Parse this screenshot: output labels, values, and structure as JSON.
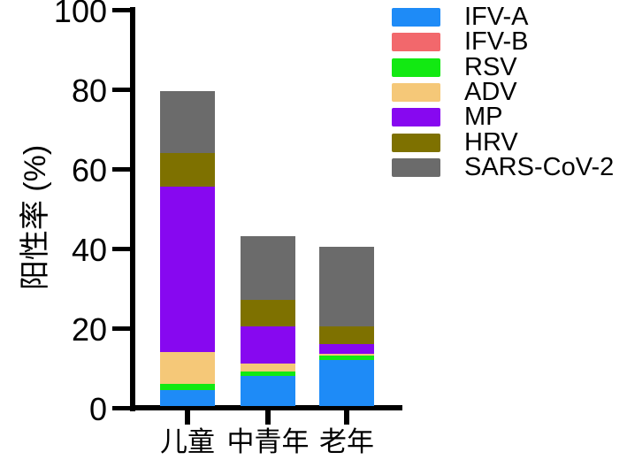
{
  "chart_data": {
    "type": "bar",
    "stacked": true,
    "title": "",
    "xlabel": "",
    "ylabel": "阳性率 (%)",
    "ylim": [
      0,
      100
    ],
    "yticks": [
      0,
      20,
      40,
      60,
      80,
      100
    ],
    "categories": [
      "儿童",
      "中青年",
      "老年"
    ],
    "series": [
      {
        "name": "IFV-A",
        "color": "#1E8BF7",
        "values": [
          4.0,
          7.5,
          11.5
        ]
      },
      {
        "name": "IFV-B",
        "color": "#F2686C",
        "values": [
          0,
          0,
          0
        ]
      },
      {
        "name": "RSV",
        "color": "#12E912",
        "values": [
          1.5,
          1.0,
          1.0
        ]
      },
      {
        "name": "ADV",
        "color": "#F5C878",
        "values": [
          8.0,
          2.0,
          0.5
        ]
      },
      {
        "name": "MP",
        "color": "#8708F0",
        "values": [
          41.5,
          9.5,
          2.5
        ]
      },
      {
        "name": "HRV",
        "color": "#7E7100",
        "values": [
          8.5,
          6.5,
          4.5
        ]
      },
      {
        "name": "SARS-CoV-2",
        "color": "#6B6B6B",
        "values": [
          15.5,
          16.0,
          20.0
        ]
      }
    ],
    "totals": [
      79.0,
      42.5,
      40.0
    ],
    "grid": false,
    "legend_position": "top-right",
    "axis_color": "#000000"
  }
}
